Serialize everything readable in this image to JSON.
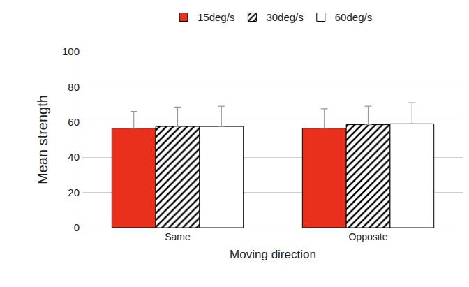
{
  "chart_data": {
    "type": "bar",
    "x_label": "Moving direction",
    "y_label": "Mean strength",
    "categories": [
      "Same",
      "Opposite"
    ],
    "series": [
      {
        "name": "15deg/s",
        "color": "#e8301c",
        "marker": "solid",
        "values": [
          56.5,
          56.5
        ],
        "errors": [
          9.5,
          11
        ]
      },
      {
        "name": "30deg/s",
        "color": "#ffffff",
        "marker": "hatch",
        "values": [
          57.5,
          58.5
        ],
        "errors": [
          11,
          10.5
        ]
      },
      {
        "name": "60deg/s",
        "color": "#ffffff",
        "marker": "solid",
        "values": [
          57.5,
          59
        ],
        "errors": [
          11.5,
          12
        ]
      }
    ],
    "ylim": [
      0,
      100
    ],
    "yticks": [
      0,
      20,
      40,
      60,
      80,
      100
    ],
    "grid": true,
    "legend": "top"
  }
}
